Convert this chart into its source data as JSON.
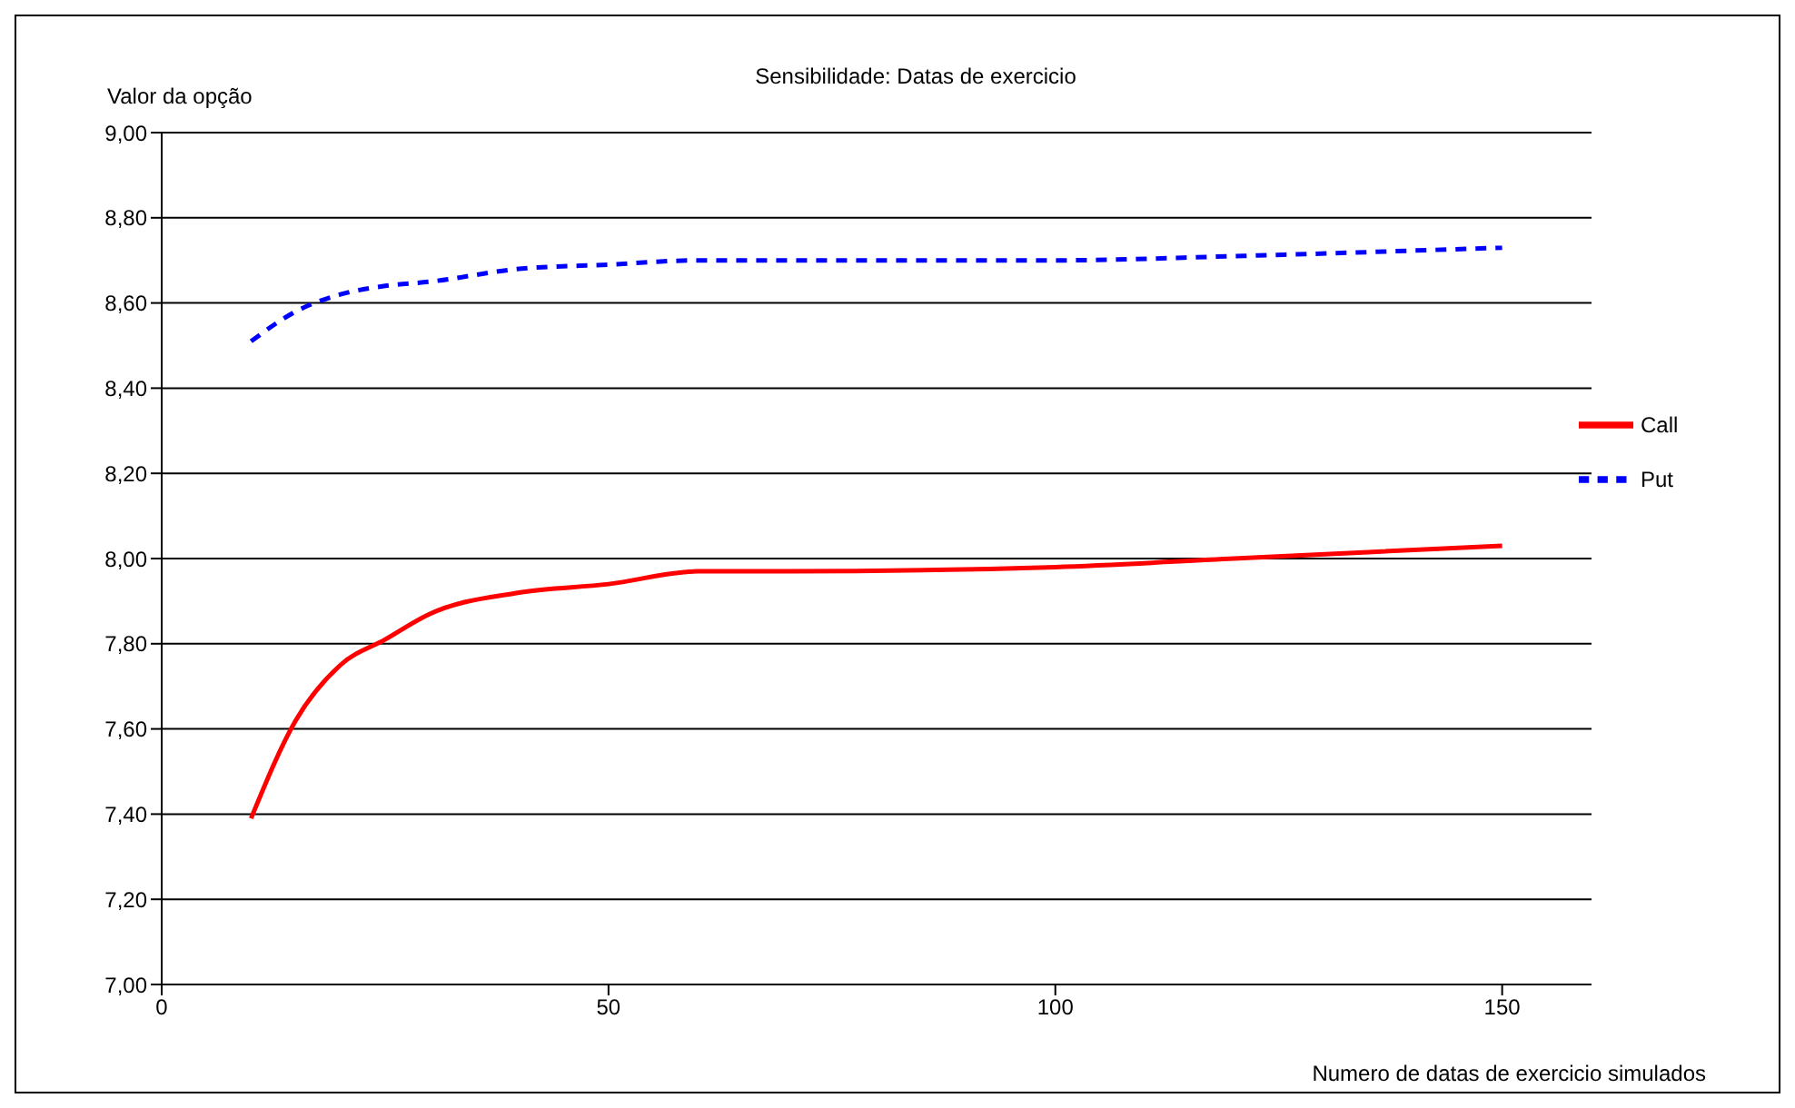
{
  "chart_data": {
    "type": "line",
    "title": "Sensibilidade: Datas de exercicio",
    "xlabel": "Numero de datas de exercicio simulados",
    "ylabel": "Valor da opção",
    "x": [
      10,
      15,
      20,
      25,
      30,
      40,
      50,
      60,
      70,
      100,
      120,
      150
    ],
    "series": [
      {
        "name": "Call",
        "color": "#ff0000",
        "line_style": "solid",
        "values": [
          7.39,
          7.62,
          7.75,
          7.81,
          7.87,
          7.92,
          7.94,
          7.97,
          7.97,
          7.98,
          8.0,
          8.03
        ]
      },
      {
        "name": "Put",
        "color": "#0000ff",
        "line_style": "dashed",
        "values": [
          8.51,
          8.58,
          8.62,
          8.64,
          8.65,
          8.68,
          8.69,
          8.7,
          8.7,
          8.7,
          8.71,
          8.73
        ]
      }
    ],
    "xlim": [
      0,
      160
    ],
    "xticks": [
      0,
      50,
      100,
      150
    ],
    "ylim": [
      7,
      9
    ],
    "yticks": [
      {
        "value": 7,
        "label": "7,00"
      },
      {
        "value": 7.2,
        "label": "7,20"
      },
      {
        "value": 7.4,
        "label": "7,40"
      },
      {
        "value": 7.6,
        "label": "7,60"
      },
      {
        "value": 7.8,
        "label": "7,80"
      },
      {
        "value": 8,
        "label": "8,00"
      },
      {
        "value": 8.2,
        "label": "8,20"
      },
      {
        "value": 8.4,
        "label": "8,40"
      },
      {
        "value": 8.6,
        "label": "8,60"
      },
      {
        "value": 8.8,
        "label": "8,80"
      },
      {
        "value": 9,
        "label": "9,00"
      }
    ],
    "grid": "y",
    "legend": "right",
    "marker": "none"
  }
}
